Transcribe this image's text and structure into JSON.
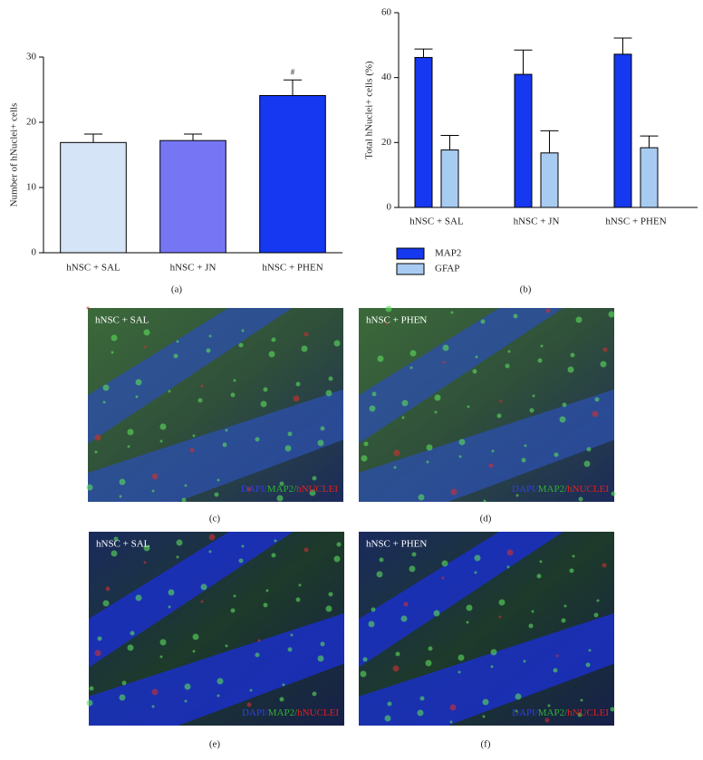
{
  "chart_data": [
    {
      "type": "bar",
      "ylabel": "Number of hNuclei+ cells",
      "categories": [
        "hNSC + SAL",
        "hNSC + JN",
        "hNSC + PHEN"
      ],
      "values": [
        16.9,
        17.2,
        24.1
      ],
      "errors": [
        1.3,
        1.0,
        2.4
      ],
      "colors": [
        "#d6e4f7",
        "#7676f5",
        "#1538f0"
      ],
      "value_annotations": [
        null,
        null,
        "#"
      ],
      "ylim": [
        0,
        30
      ],
      "yticks": [
        0,
        10,
        20,
        30
      ],
      "grid": false
    },
    {
      "type": "grouped_bar",
      "ylabel": "Total hNuclei+ cells (%)",
      "categories": [
        "hNSC + SAL",
        "hNSC + JN",
        "hNSC + PHEN"
      ],
      "series": [
        {
          "name": "MAP2",
          "color": "#1538f0",
          "values": [
            46.2,
            41.0,
            47.2
          ],
          "errors": [
            2.6,
            7.5,
            5.0
          ]
        },
        {
          "name": "GFAP",
          "color": "#a8cbf2",
          "values": [
            17.7,
            16.8,
            18.4
          ],
          "errors": [
            4.5,
            6.8,
            3.6
          ]
        }
      ],
      "ylim": [
        0,
        60
      ],
      "yticks": [
        0,
        20,
        40,
        60
      ],
      "grid": false,
      "legend": "bottom-left"
    }
  ],
  "panels": [
    "(a)",
    "(b)",
    "(c)",
    "(d)",
    "(e)",
    "(f)"
  ],
  "images": [
    {
      "label": "hNSC + SAL",
      "stain": [
        "DAPI/",
        "MAP2/",
        "hNUCLEI"
      ]
    },
    {
      "label": "hNSC + PHEN",
      "stain": [
        "DAPI/",
        "MAP2/",
        "hNUCLEI"
      ]
    },
    {
      "label": "hNSC + SAL",
      "stain": [
        "DAPI/",
        "MAP2/",
        "hNUCLEI"
      ]
    },
    {
      "label": "hNSC + PHEN",
      "stain": [
        "DAPI/",
        "MAP2/",
        "hNUCLEI"
      ]
    }
  ]
}
